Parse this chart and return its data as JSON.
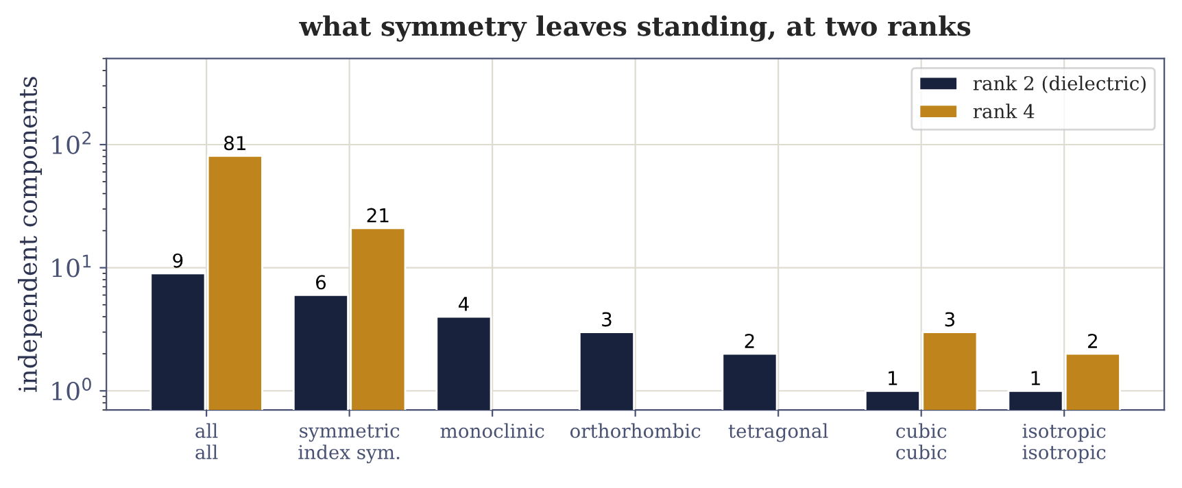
{
  "chart_data": {
    "type": "bar",
    "title": "what symmetry leaves standing, at two ranks",
    "categories": [
      "all\nall",
      "symmetric\nindex sym.",
      "monoclinic",
      "orthorhombic",
      "tetragonal",
      "cubic\ncubic",
      "isotropic\nisotropic"
    ],
    "series": [
      {
        "name": "rank 2 (dielectric)",
        "color": "#18223d",
        "values": [
          9,
          6,
          4,
          3,
          2,
          1,
          1
        ]
      },
      {
        "name": "rank 4",
        "color": "#c0841c",
        "values": [
          81,
          21,
          null,
          null,
          null,
          3,
          2
        ]
      }
    ],
    "ylabel": "independent components",
    "log": "y",
    "ylim": [
      0.7,
      500
    ],
    "yticks": [
      {
        "value": 1,
        "label": "10$^{0}$"
      },
      {
        "value": 10,
        "label": "10$^{1}$"
      },
      {
        "value": 100,
        "label": "10$^{2}$"
      }
    ],
    "grid": true,
    "legend": "top right",
    "data_labels": true
  }
}
